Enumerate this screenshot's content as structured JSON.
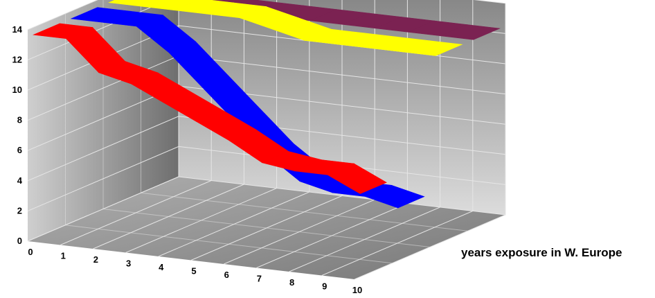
{
  "chart_data": {
    "type": "area",
    "xlabel": "years exposure in W. Europe",
    "ylabel": "",
    "title": "",
    "x": [
      0,
      1,
      2,
      3,
      4,
      5,
      6,
      7,
      8,
      9,
      10
    ],
    "y_ticks": [
      0,
      2,
      4,
      6,
      8,
      10,
      12,
      14
    ],
    "ylim": [
      0,
      14
    ],
    "xlim": [
      0,
      10
    ],
    "grid": true,
    "three_d": true,
    "series": [
      {
        "depth": 0,
        "color": "#ff0000",
        "values": [
          13.5,
          13.5,
          11.5,
          11,
          10,
          9,
          8,
          6.8,
          6.5,
          6.5,
          5.5
        ]
      },
      {
        "depth": 1,
        "color": "#0000ff",
        "values": [
          13.5,
          13.5,
          13.5,
          12,
          10,
          8,
          6,
          4.5,
          4,
          4,
          3.5
        ]
      },
      {
        "depth": 2,
        "color": "#ffff00",
        "values": [
          13.5,
          13.5,
          13.5,
          13.5,
          13.5,
          13,
          12.5,
          12.5,
          12.5,
          12.5,
          12.5
        ]
      },
      {
        "depth": 3,
        "color": "#7b2252",
        "values": [
          12.5,
          12.5,
          12.5,
          12.5,
          12.5,
          12.5,
          12.5,
          12.5,
          12.5,
          12.5,
          12.5
        ]
      }
    ]
  }
}
